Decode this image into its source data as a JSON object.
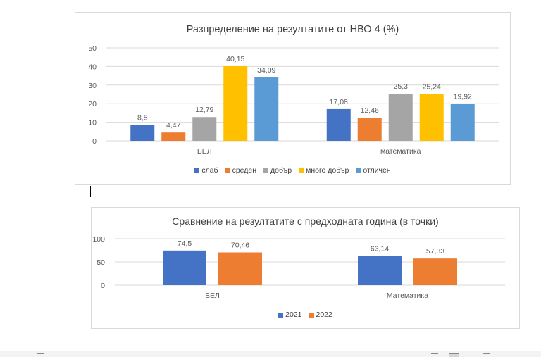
{
  "chart_data": [
    {
      "type": "bar",
      "title": "Разпределение на резултатите от НВО 4 (%)",
      "categories": [
        "БЕЛ",
        "математика"
      ],
      "series": [
        {
          "name": "слаб",
          "values": [
            8.5,
            17.08
          ],
          "labels": [
            "8,5",
            "17,08"
          ],
          "color": "#4472c4"
        },
        {
          "name": "среден",
          "values": [
            4.47,
            12.46
          ],
          "labels": [
            "4,47",
            "12,46"
          ],
          "color": "#ed7d31"
        },
        {
          "name": "добър",
          "values": [
            12.79,
            25.3
          ],
          "labels": [
            "12,79",
            "25,3"
          ],
          "color": "#a5a5a5"
        },
        {
          "name": "много добър",
          "values": [
            40.15,
            25.24
          ],
          "labels": [
            "40,15",
            "25,24"
          ],
          "color": "#ffc000"
        },
        {
          "name": "отличен",
          "values": [
            34.09,
            19.92
          ],
          "labels": [
            "34,09",
            "19,92"
          ],
          "color": "#5b9bd5"
        }
      ],
      "ylim": [
        0,
        50
      ],
      "yticks": [
        0,
        10,
        20,
        30,
        40,
        50
      ],
      "grid": true,
      "legend": "bottom"
    },
    {
      "type": "bar",
      "title": "Сравнение на резултатите с предходната година (в точки)",
      "categories": [
        "БЕЛ",
        "Математика"
      ],
      "series": [
        {
          "name": "2021",
          "values": [
            74.5,
            63.14
          ],
          "labels": [
            "74,5",
            "63,14"
          ],
          "color": "#4472c4"
        },
        {
          "name": "2022",
          "values": [
            70.46,
            57.33
          ],
          "labels": [
            "70,46",
            "57,33"
          ],
          "color": "#ed7d31"
        }
      ],
      "ylim": [
        0,
        100
      ],
      "yticks": [
        0,
        50,
        100
      ],
      "grid": true,
      "legend": "bottom"
    }
  ]
}
